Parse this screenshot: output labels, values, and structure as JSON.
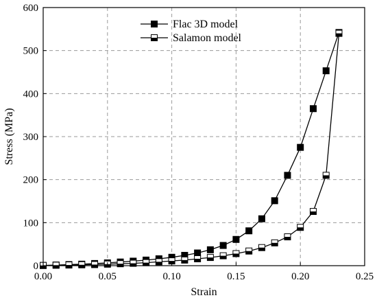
{
  "chart_data": {
    "type": "line",
    "xlabel": "Strain",
    "ylabel": "Stress (MPa)",
    "xlim": [
      0.0,
      0.25
    ],
    "ylim": [
      0,
      600
    ],
    "xticks": [
      0.0,
      0.05,
      0.1,
      0.15,
      0.2,
      0.25
    ],
    "xtick_labels": [
      "0.00",
      "0.05",
      "0.10",
      "0.15",
      "0.20",
      "0.25"
    ],
    "yticks": [
      0,
      100,
      200,
      300,
      400,
      500,
      600
    ],
    "ytick_labels": [
      "0",
      "100",
      "200",
      "300",
      "400",
      "500",
      "600"
    ],
    "grid": "dashed",
    "legend_position": "top-center",
    "series": [
      {
        "name": "Flac 3D model",
        "marker": "filled-square",
        "color": "#000000",
        "x": [
          0.0,
          0.01,
          0.02,
          0.03,
          0.04,
          0.05,
          0.06,
          0.07,
          0.08,
          0.09,
          0.1,
          0.11,
          0.12,
          0.13,
          0.14,
          0.15,
          0.16,
          0.17,
          0.18,
          0.19,
          0.2,
          0.21,
          0.22,
          0.23
        ],
        "y": [
          0.5,
          1.5,
          2.5,
          3.5,
          5,
          6.5,
          8.5,
          10.5,
          13,
          16,
          19.5,
          24,
          29.5,
          37,
          47,
          61,
          81,
          109,
          151,
          210,
          275,
          365,
          453,
          542
        ]
      },
      {
        "name": "Salamon model",
        "marker": "half-filled-square",
        "color": "#000000",
        "x": [
          0.23,
          0.22,
          0.21,
          0.2,
          0.19,
          0.18,
          0.17,
          0.16,
          0.15,
          0.14,
          0.13,
          0.12,
          0.11,
          0.1,
          0.09,
          0.08,
          0.07,
          0.06,
          0.05,
          0.04,
          0.03,
          0.02,
          0.01,
          0.0
        ],
        "y": [
          540,
          210,
          126,
          89,
          67,
          53,
          42,
          34,
          28,
          23,
          19,
          16,
          13,
          11,
          9,
          7,
          5.5,
          4.5,
          3.5,
          2.5,
          2,
          1.5,
          1,
          0.5
        ]
      }
    ]
  }
}
